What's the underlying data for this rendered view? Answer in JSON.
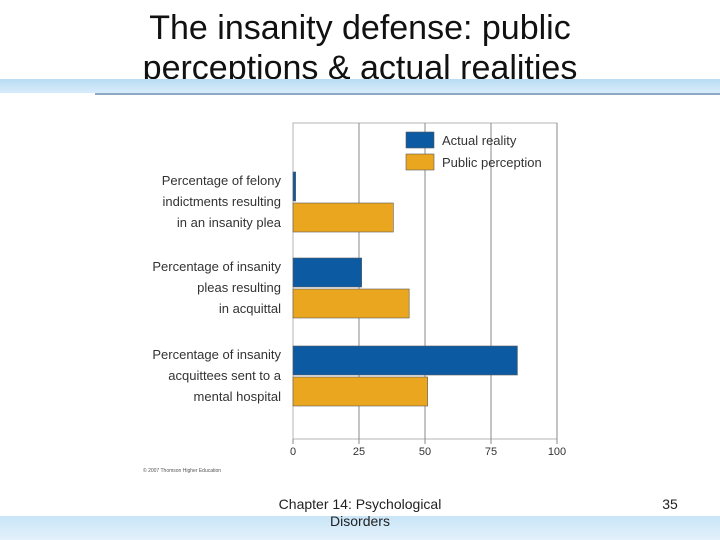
{
  "slide": {
    "title_line1": "The insanity defense: public",
    "title_line2": "perceptions & actual realities",
    "footer_line1": "Chapter 14: Psychological",
    "footer_line2": "Disorders",
    "page_number": "35",
    "copyright": "© 2007 Thomson Higher Education"
  },
  "chart_data": {
    "type": "bar",
    "orientation": "horizontal",
    "categories": [
      [
        "Percentage of felony",
        "indictments resulting",
        "in an insanity plea"
      ],
      [
        "Percentage of insanity",
        "pleas resulting",
        "in acquittal"
      ],
      [
        "Percentage of insanity",
        "acquittees sent to a",
        "mental hospital"
      ]
    ],
    "series": [
      {
        "name": "Actual reality",
        "color": "#0b5aa2",
        "values": [
          1,
          26,
          85
        ]
      },
      {
        "name": "Public perception",
        "color": "#eba620",
        "values": [
          38,
          44,
          51
        ]
      }
    ],
    "xlim": [
      0,
      100
    ],
    "xticks": [
      0,
      25,
      50,
      75,
      100
    ],
    "grid": true,
    "legend": "top-right"
  }
}
